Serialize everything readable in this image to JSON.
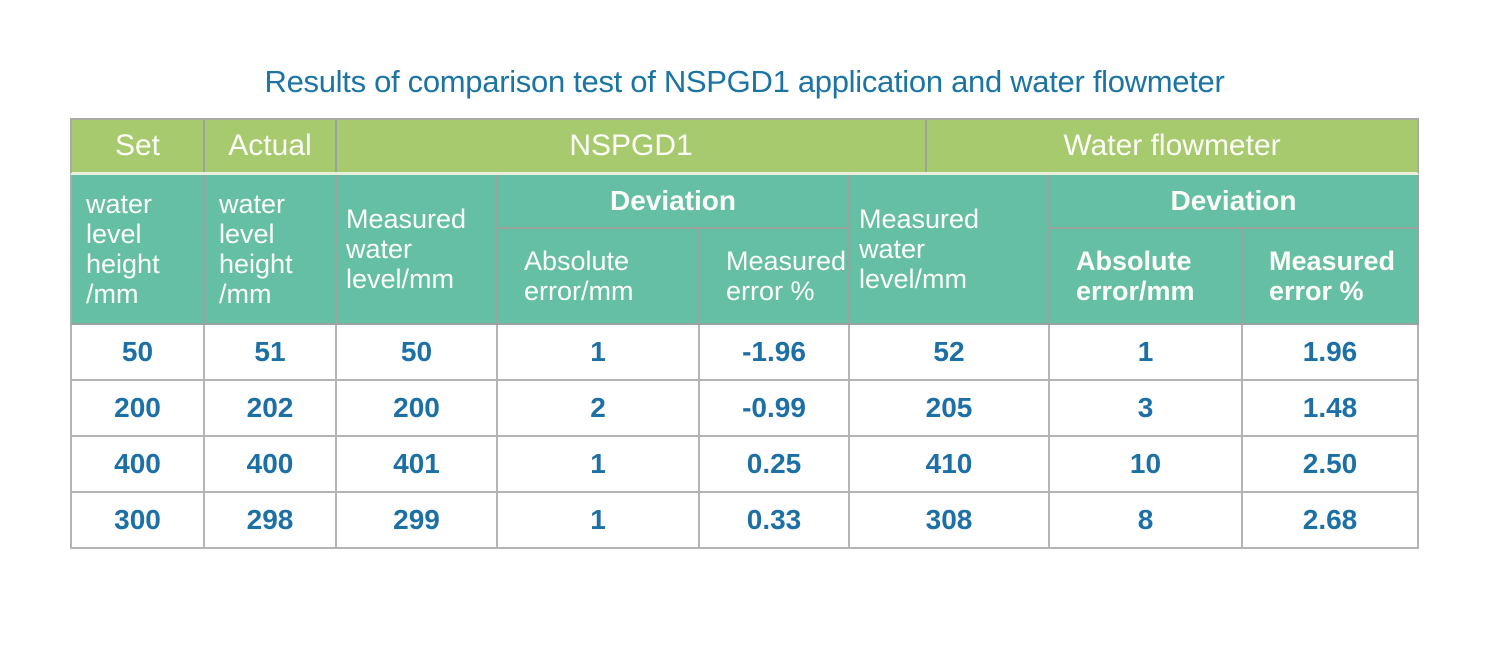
{
  "page": {
    "title": "Results of comparison test of NSPGD1 application and water flowmeter"
  },
  "chart_data": {
    "type": "table",
    "title": "Results of comparison test of NSPGD1 application and water flowmeter",
    "column_groups": [
      {
        "group": "Set",
        "columns": [
          "water level height /mm"
        ]
      },
      {
        "group": "Actual",
        "columns": [
          "water level height /mm"
        ]
      },
      {
        "group": "NSPGD1",
        "columns": [
          "Measured water level/mm",
          "Deviation - Absolute error/mm",
          "Deviation - Measured error %"
        ]
      },
      {
        "group": "Water flowmeter",
        "columns": [
          "Measured water level/mm",
          "Deviation - Absolute error/mm",
          "Deviation - Measured error %"
        ]
      }
    ],
    "rows": [
      [
        50,
        51,
        50,
        1,
        -1.96,
        52,
        1,
        1.96
      ],
      [
        200,
        202,
        200,
        2,
        -0.99,
        205,
        3,
        1.48
      ],
      [
        400,
        400,
        401,
        1,
        0.25,
        410,
        10,
        2.5
      ],
      [
        300,
        298,
        299,
        1,
        0.33,
        308,
        8,
        2.68
      ]
    ]
  },
  "header": {
    "groups": [
      "Set",
      "Actual",
      "NSPGD1",
      "Water flowmeter"
    ],
    "set_sub": "water\nlevel\nheight\n/mm",
    "actual_sub": "water\nlevel\nheight\n/mm",
    "nspgd1_measured": "Measured\nwater\nlevel/mm",
    "nspgd1_deviation": "Deviation",
    "nspgd1_abs_error": "Absolute\nerror/mm",
    "nspgd1_meas_error": "Measured\nerror %",
    "fm_measured": "Measured\nwater\nlevel/mm",
    "fm_deviation": "Deviation",
    "fm_abs_error": "Absolute\nerror/mm",
    "fm_meas_error": "Measured\nerror %"
  },
  "cells": [
    [
      "50",
      "51",
      "50",
      "1",
      "-1.96",
      "52",
      "1",
      "1.96"
    ],
    [
      "200",
      "202",
      "200",
      "2",
      "-0.99",
      "205",
      "3",
      "1.48"
    ],
    [
      "400",
      "400",
      "401",
      "1",
      "0.25",
      "410",
      "10",
      "2.50"
    ],
    [
      "300",
      "298",
      "299",
      "1",
      "0.33",
      "308",
      "8",
      "2.68"
    ]
  ],
  "colors": {
    "title_text": "#1b74a4",
    "group_header_bg": "#a7ca6e",
    "sub_header_bg": "#64bfa4",
    "header_text": "#fdfdf8",
    "data_text": "#1d70a5",
    "header_border": "#98a49d",
    "body_border": "#b4b4b4",
    "header_bottom_light_line": "#e9efda"
  }
}
